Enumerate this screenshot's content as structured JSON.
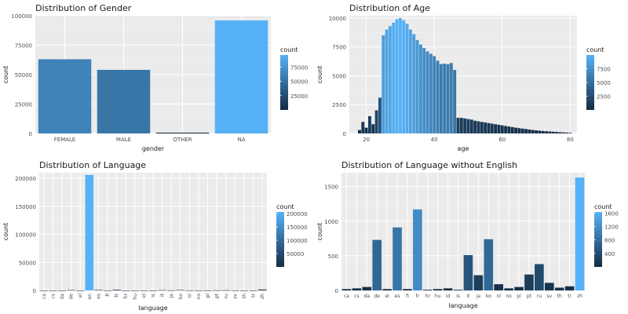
{
  "chart_data": [
    {
      "id": "gender",
      "type": "bar",
      "title": "Distribution of Gender",
      "xlabel": "gender",
      "ylabel": "count",
      "categories": [
        "FEMALE",
        "MALE",
        "OTHER",
        "NA"
      ],
      "values": [
        63000,
        54000,
        700,
        96000
      ],
      "ylim": [
        0,
        100000
      ],
      "yticks": [
        0,
        25000,
        50000,
        75000,
        100000
      ],
      "ytick_labels": [
        "0",
        "25000",
        "50000",
        "75000",
        "100000"
      ],
      "grid": true,
      "legend": {
        "title": "count",
        "position": "right",
        "ticks": [
          25000,
          50000,
          75000
        ],
        "tick_labels": [
          "25000",
          "50000",
          "75000"
        ],
        "range": [
          0,
          96000
        ]
      }
    },
    {
      "id": "age",
      "type": "bar",
      "title": "Distribution of Age",
      "xlabel": "age",
      "ylabel": "count",
      "x": [
        18,
        19,
        20,
        21,
        22,
        23,
        24,
        25,
        26,
        27,
        28,
        29,
        30,
        31,
        32,
        33,
        34,
        35,
        36,
        37,
        38,
        39,
        40,
        41,
        42,
        43,
        44,
        45,
        46,
        47,
        48,
        49,
        50,
        51,
        52,
        53,
        54,
        55,
        56,
        57,
        58,
        59,
        60,
        61,
        62,
        63,
        64,
        65,
        66,
        67,
        68,
        69,
        70,
        71,
        72,
        73,
        74,
        75,
        76,
        77,
        78,
        79,
        80
      ],
      "values": [
        300,
        1000,
        500,
        1500,
        800,
        2000,
        3100,
        8500,
        9000,
        9300,
        9600,
        9900,
        10000,
        9800,
        9500,
        9000,
        8600,
        8100,
        7700,
        7400,
        7100,
        6900,
        6700,
        6300,
        6000,
        6050,
        6000,
        6100,
        5500,
        1350,
        1350,
        1300,
        1250,
        1200,
        1100,
        1050,
        1000,
        950,
        900,
        850,
        800,
        750,
        700,
        650,
        600,
        550,
        500,
        460,
        420,
        380,
        340,
        300,
        270,
        240,
        210,
        190,
        170,
        150,
        130,
        110,
        90,
        70,
        50
      ],
      "xlim": [
        15,
        82
      ],
      "ylim": [
        0,
        10200
      ],
      "xticks": [
        20,
        40,
        60,
        80
      ],
      "xtick_labels": [
        "20",
        "40",
        "60",
        "80"
      ],
      "yticks": [
        0,
        2500,
        5000,
        7500,
        10000
      ],
      "ytick_labels": [
        "0",
        "2500",
        "5000",
        "7500",
        "10000"
      ],
      "grid": true,
      "legend": {
        "title": "count",
        "position": "right",
        "ticks": [
          2500,
          5000,
          7500
        ],
        "tick_labels": [
          "2500",
          "5000",
          "7500"
        ],
        "range": [
          0,
          10000
        ]
      }
    },
    {
      "id": "language",
      "type": "bar",
      "title": "Distribution of Language",
      "xlabel": "language",
      "ylabel": "count",
      "categories": [
        "ca",
        "cs",
        "da",
        "de",
        "el",
        "en",
        "es",
        "fi",
        "fr",
        "hr",
        "hu",
        "id",
        "is",
        "it",
        "ja",
        "ko",
        "nl",
        "no",
        "pl",
        "pt",
        "ru",
        "sv",
        "th",
        "tr",
        "zh"
      ],
      "values": [
        20,
        30,
        50,
        700,
        20,
        206000,
        900,
        20,
        1200,
        10,
        20,
        30,
        10,
        500,
        220,
        740,
        90,
        30,
        50,
        230,
        380,
        110,
        40,
        60,
        1600
      ],
      "ylim": [
        0,
        210000
      ],
      "yticks": [
        0,
        50000,
        100000,
        150000,
        200000
      ],
      "ytick_labels": [
        "0",
        "50000",
        "100000",
        "150000",
        "200000"
      ],
      "grid": true,
      "legend": {
        "title": "count",
        "position": "right",
        "ticks": [
          50000,
          100000,
          150000,
          200000
        ],
        "tick_labels": [
          "50000",
          "100000",
          "150000",
          "200000"
        ],
        "range": [
          0,
          206000
        ]
      }
    },
    {
      "id": "language_ne",
      "type": "bar",
      "title": "Distribution of Language without English",
      "xlabel": "language",
      "ylabel": "count",
      "categories": [
        "ca",
        "cs",
        "da",
        "de",
        "el",
        "es",
        "fi",
        "fr",
        "hr",
        "hu",
        "id",
        "is",
        "it",
        "ja",
        "ko",
        "nl",
        "no",
        "pl",
        "pt",
        "ru",
        "sv",
        "th",
        "tr",
        "zh"
      ],
      "values": [
        20,
        30,
        50,
        730,
        20,
        910,
        20,
        1170,
        10,
        20,
        30,
        10,
        510,
        220,
        740,
        90,
        30,
        50,
        230,
        380,
        110,
        40,
        60,
        1630
      ],
      "ylim": [
        0,
        1700
      ],
      "yticks": [
        0,
        500,
        1000,
        1500
      ],
      "ytick_labels": [
        "0",
        "500",
        "1000",
        "1500"
      ],
      "grid": true,
      "legend": {
        "title": "count",
        "position": "right",
        "ticks": [
          400,
          800,
          1200,
          1600
        ],
        "tick_labels": [
          "400",
          "800",
          "1200",
          "1600"
        ],
        "range": [
          0,
          1630
        ]
      }
    }
  ]
}
